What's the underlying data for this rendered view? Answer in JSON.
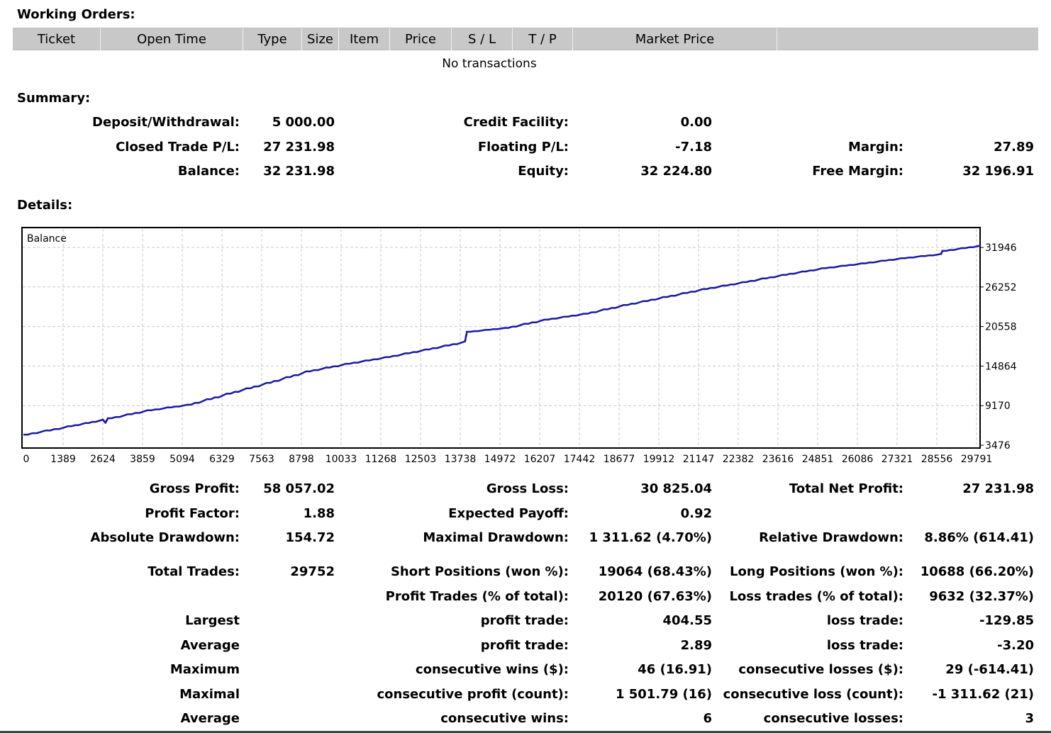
{
  "working_orders": {
    "title": "Working Orders:",
    "columns": [
      "Ticket",
      "Open Time",
      "Type",
      "Size",
      "Item",
      "Price",
      "S / L",
      "T / P",
      "Market Price",
      ""
    ],
    "empty_text": "No transactions"
  },
  "summary": {
    "title": "Summary:",
    "deposit_label": "Deposit/Withdrawal:",
    "deposit_value": "5 000.00",
    "credit_label": "Credit Facility:",
    "credit_value": "0.00",
    "closed_pl_label": "Closed Trade P/L:",
    "closed_pl_value": "27 231.98",
    "floating_label": "Floating P/L:",
    "floating_value": "-7.18",
    "margin_label": "Margin:",
    "margin_value": "27.89",
    "balance_label": "Balance:",
    "balance_value": "32 231.98",
    "equity_label": "Equity:",
    "equity_value": "32 224.80",
    "free_margin_label": "Free Margin:",
    "free_margin_value": "32 196.91"
  },
  "details": {
    "title": "Details:",
    "gross_profit_label": "Gross Profit:",
    "gross_profit_value": "58 057.02",
    "gross_loss_label": "Gross Loss:",
    "gross_loss_value": "30 825.04",
    "total_net_label": "Total Net Profit:",
    "total_net_value": "27 231.98",
    "profit_factor_label": "Profit Factor:",
    "profit_factor_value": "1.88",
    "expected_payoff_label": "Expected Payoff:",
    "expected_payoff_value": "0.92",
    "abs_dd_label": "Absolute Drawdown:",
    "abs_dd_value": "154.72",
    "max_dd_label": "Maximal Drawdown:",
    "max_dd_value": "1 311.62 (4.70%)",
    "rel_dd_label": "Relative Drawdown:",
    "rel_dd_value": "8.86% (614.41)",
    "total_trades_label": "Total Trades:",
    "total_trades_value": "29752",
    "short_label": "Short Positions (won %):",
    "short_value": "19064 (68.43%)",
    "long_label": "Long Positions (won %):",
    "long_value": "10688 (66.20%)",
    "profit_trades_label": "Profit Trades (% of total):",
    "profit_trades_value": "20120 (67.63%)",
    "loss_trades_label": "Loss trades (% of total):",
    "loss_trades_value": "9632 (32.37%)",
    "largest_label": "Largest",
    "largest_profit_label": "profit trade:",
    "largest_profit_value": "404.55",
    "largest_loss_label": "loss trade:",
    "largest_loss_value": "-129.85",
    "average_label": "Average",
    "avg_profit_label": "profit trade:",
    "avg_profit_value": "2.89",
    "avg_loss_label": "loss trade:",
    "avg_loss_value": "-3.20",
    "maximum_label": "Maximum",
    "max_cons_wins_label": "consecutive wins ($):",
    "max_cons_wins_value": "46 (16.91)",
    "max_cons_losses_label": "consecutive losses ($):",
    "max_cons_losses_value": "29 (-614.41)",
    "maximal_label": "Maximal",
    "maximal_cons_profit_label": "consecutive profit (count):",
    "maximal_cons_profit_value": "1 501.79 (16)",
    "maximal_cons_loss_label": "consecutive loss (count):",
    "maximal_cons_loss_value": "-1 311.62 (21)",
    "average2_label": "Average",
    "avg_cons_wins_label": "consecutive wins:",
    "avg_cons_wins_value": "6",
    "avg_cons_losses_label": "consecutive losses:",
    "avg_cons_losses_value": "3"
  },
  "chart_data": {
    "type": "line",
    "title": "Balance",
    "x_ticks": [
      "0",
      "1389",
      "2624",
      "3859",
      "5094",
      "6329",
      "7563",
      "8798",
      "10033",
      "11268",
      "12503",
      "13738",
      "14972",
      "16207",
      "17442",
      "18677",
      "19912",
      "21147",
      "22382",
      "23616",
      "24851",
      "26086",
      "27321",
      "28556",
      "29791"
    ],
    "y_ticks": [
      "3476",
      "9170",
      "14864",
      "20558",
      "26252",
      "31946"
    ],
    "xlim": [
      0,
      29752
    ],
    "ylim": [
      3476,
      31946
    ],
    "grid": true,
    "line_color": "#1a1aa0",
    "series": [
      {
        "name": "Balance",
        "x": [
          0,
          1389,
          2470,
          2550,
          2624,
          3859,
          5094,
          6329,
          7563,
          8798,
          10033,
          11268,
          12503,
          13738,
          13800,
          14972,
          16207,
          17442,
          18677,
          19912,
          21147,
          22382,
          23616,
          24851,
          26086,
          27321,
          28556,
          28600,
          29791
        ],
        "y": [
          5000,
          6200,
          7150,
          6700,
          7350,
          8500,
          9300,
          10900,
          12450,
          14100,
          15200,
          16150,
          17250,
          18400,
          19800,
          20350,
          21550,
          22400,
          23650,
          24800,
          25950,
          26950,
          28000,
          28950,
          29650,
          30400,
          31000,
          31450,
          32232
        ]
      }
    ]
  }
}
